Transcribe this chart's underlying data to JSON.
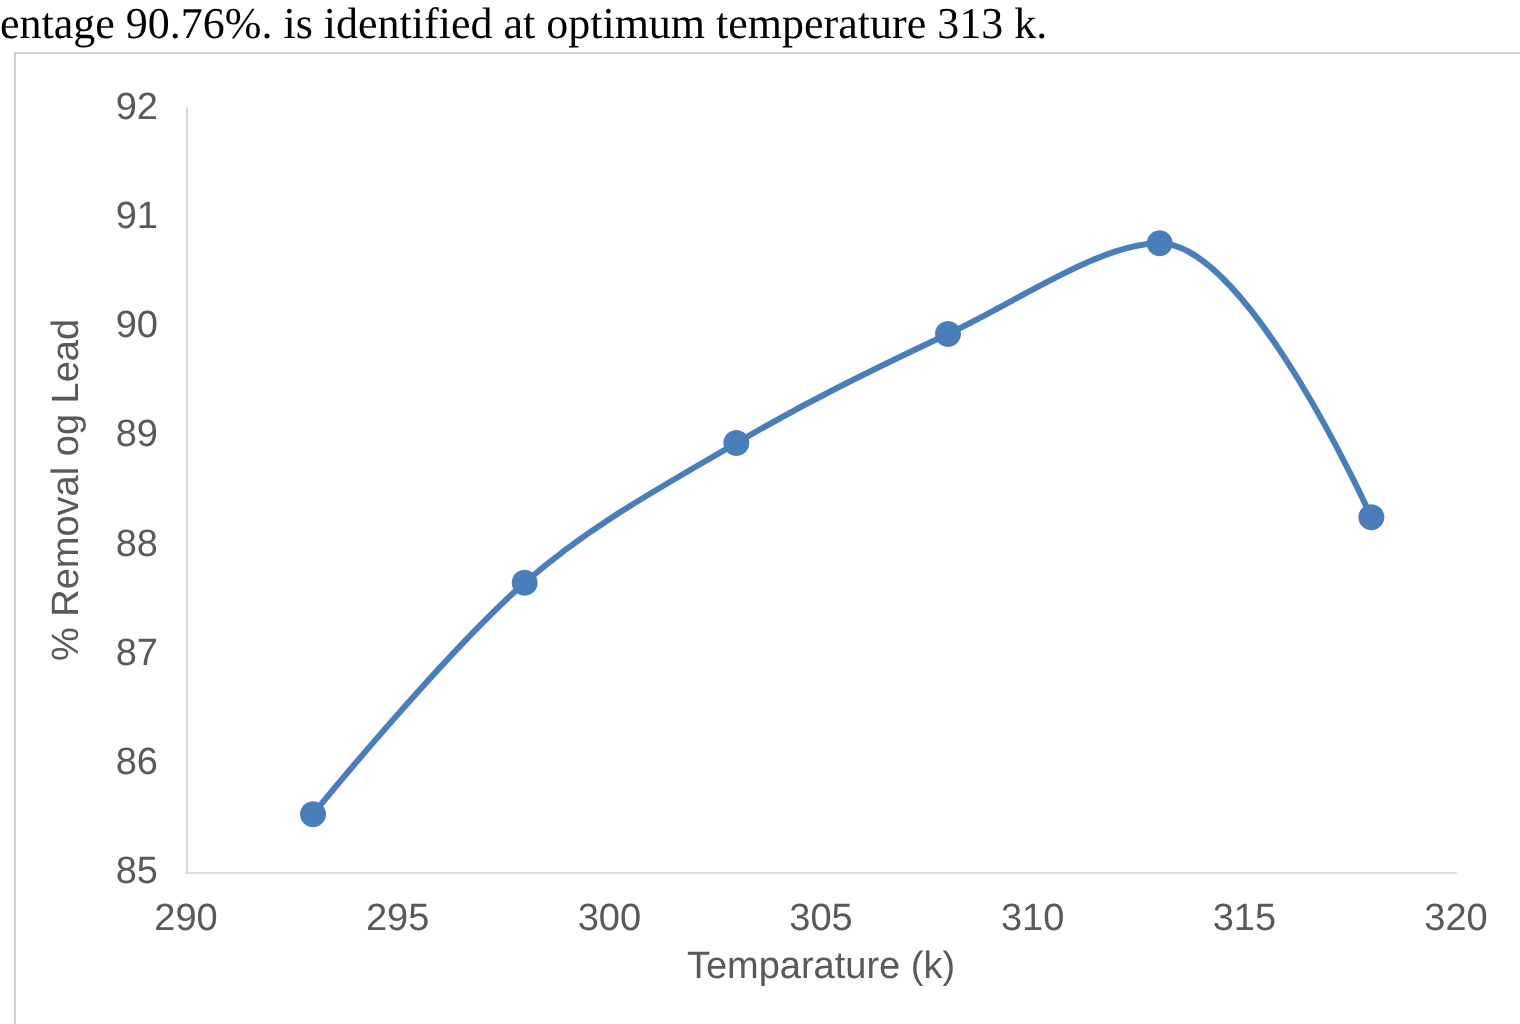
{
  "chart_data": {
    "type": "line",
    "xlabel": "Temparature (k)",
    "ylabel": "% Removal og Lead",
    "annotations": [
      "entage 90.76%. is identified at optimum temperature 313 k."
    ],
    "x": [
      293,
      298,
      303,
      308,
      313,
      318
    ],
    "series": [
      {
        "color": "#4a7ebb",
        "values": [
          85.53,
          87.65,
          88.93,
          89.93,
          90.76,
          88.25
        ]
      }
    ],
    "xlim": [
      290,
      320
    ],
    "xticks": [
      290,
      295,
      300,
      305,
      310,
      315,
      320
    ],
    "ylim": [
      85,
      92
    ],
    "yticks": [
      85,
      86,
      87,
      88,
      89,
      90,
      91,
      92
    ],
    "grid": false,
    "marker": "circle",
    "line_style": "solid"
  }
}
